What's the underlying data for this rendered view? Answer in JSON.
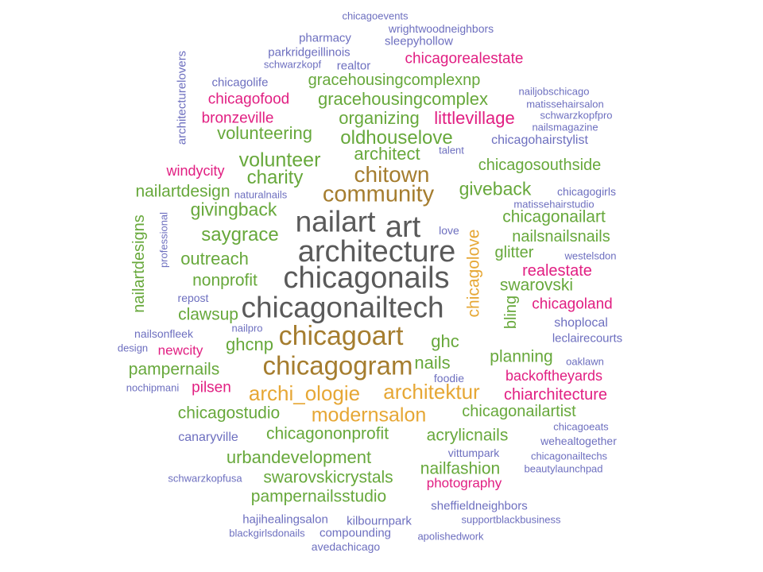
{
  "colors": {
    "gray": "#5a5a5a",
    "brown": "#a57d2f",
    "gold": "#e6a735",
    "green": "#67a83b",
    "magenta": "#e11f82",
    "purple": "#6d6fbf"
  },
  "words": [
    {
      "text": "chicagoevents",
      "color": "purple"
    },
    {
      "text": "wrightwoodneighbors",
      "color": "purple"
    },
    {
      "text": "pharmacy",
      "color": "purple"
    },
    {
      "text": "sleepyhollow",
      "color": "purple"
    },
    {
      "text": "parkridgeillinois",
      "color": "purple"
    },
    {
      "text": "schwarzkopf",
      "color": "purple"
    },
    {
      "text": "realtor",
      "color": "purple"
    },
    {
      "text": "chicagorealestate",
      "color": "magenta"
    },
    {
      "text": "architecturelovers",
      "color": "purple"
    },
    {
      "text": "chicagolife",
      "color": "purple"
    },
    {
      "text": "gracehousingcomplexnp",
      "color": "green"
    },
    {
      "text": "nailjobschicago",
      "color": "purple"
    },
    {
      "text": "chicagofood",
      "color": "magenta"
    },
    {
      "text": "gracehousingcomplex",
      "color": "green"
    },
    {
      "text": "matissehairsalon",
      "color": "purple"
    },
    {
      "text": "bronzeville",
      "color": "magenta"
    },
    {
      "text": "organizing",
      "color": "green"
    },
    {
      "text": "littlevillage",
      "color": "magenta"
    },
    {
      "text": "schwarzkopfpro",
      "color": "purple"
    },
    {
      "text": "nailsmagazine",
      "color": "purple"
    },
    {
      "text": "volunteering",
      "color": "green"
    },
    {
      "text": "oldhouselove",
      "color": "green"
    },
    {
      "text": "chicagohairstylist",
      "color": "purple"
    },
    {
      "text": "architect",
      "color": "green"
    },
    {
      "text": "talent",
      "color": "purple"
    },
    {
      "text": "volunteer",
      "color": "green"
    },
    {
      "text": "chicagosouthside",
      "color": "green"
    },
    {
      "text": "windycity",
      "color": "magenta"
    },
    {
      "text": "chitown",
      "color": "brown"
    },
    {
      "text": "charity",
      "color": "green"
    },
    {
      "text": "nailartdesign",
      "color": "green"
    },
    {
      "text": "naturalnails",
      "color": "purple"
    },
    {
      "text": "community",
      "color": "brown"
    },
    {
      "text": "giveback",
      "color": "green"
    },
    {
      "text": "chicagogirls",
      "color": "purple"
    },
    {
      "text": "matissehairstudio",
      "color": "purple"
    },
    {
      "text": "givingback",
      "color": "green"
    },
    {
      "text": "chicagonailart",
      "color": "green"
    },
    {
      "text": "nailart",
      "color": "gray"
    },
    {
      "text": "art",
      "color": "gray"
    },
    {
      "text": "love",
      "color": "purple"
    },
    {
      "text": "saygrace",
      "color": "green"
    },
    {
      "text": "nailsnailsnails",
      "color": "green"
    },
    {
      "text": "nailartdesigns",
      "color": "green"
    },
    {
      "text": "professional",
      "color": "purple"
    },
    {
      "text": "architecture",
      "color": "gray"
    },
    {
      "text": "glitter",
      "color": "green"
    },
    {
      "text": "westelsdon",
      "color": "purple"
    },
    {
      "text": "outreach",
      "color": "green"
    },
    {
      "text": "chicagolove",
      "color": "gold"
    },
    {
      "text": "realestate",
      "color": "magenta"
    },
    {
      "text": "nonprofit",
      "color": "green"
    },
    {
      "text": "chicagonails",
      "color": "gray"
    },
    {
      "text": "swarovski",
      "color": "green"
    },
    {
      "text": "repost",
      "color": "purple"
    },
    {
      "text": "chicagoland",
      "color": "magenta"
    },
    {
      "text": "clawsup",
      "color": "green"
    },
    {
      "text": "chicagonailtech",
      "color": "gray"
    },
    {
      "text": "bling",
      "color": "green"
    },
    {
      "text": "shoplocal",
      "color": "purple"
    },
    {
      "text": "nailsonfleek",
      "color": "purple"
    },
    {
      "text": "nailpro",
      "color": "purple"
    },
    {
      "text": "leclairecourts",
      "color": "purple"
    },
    {
      "text": "design",
      "color": "purple"
    },
    {
      "text": "newcity",
      "color": "magenta"
    },
    {
      "text": "ghcnp",
      "color": "green"
    },
    {
      "text": "chicagoart",
      "color": "brown"
    },
    {
      "text": "ghc",
      "color": "green"
    },
    {
      "text": "planning",
      "color": "green"
    },
    {
      "text": "oaklawn",
      "color": "purple"
    },
    {
      "text": "pampernails",
      "color": "green"
    },
    {
      "text": "chicagogram",
      "color": "brown"
    },
    {
      "text": "nails",
      "color": "green"
    },
    {
      "text": "backoftheyards",
      "color": "magenta"
    },
    {
      "text": "foodie",
      "color": "purple"
    },
    {
      "text": "nochipmani",
      "color": "purple"
    },
    {
      "text": "pilsen",
      "color": "magenta"
    },
    {
      "text": "archi_ologie",
      "color": "gold"
    },
    {
      "text": "architektur",
      "color": "gold"
    },
    {
      "text": "chiarchitecture",
      "color": "magenta"
    },
    {
      "text": "chicagostudio",
      "color": "green"
    },
    {
      "text": "modernsalon",
      "color": "gold"
    },
    {
      "text": "chicagonailartist",
      "color": "green"
    },
    {
      "text": "chicagoeats",
      "color": "purple"
    },
    {
      "text": "canaryville",
      "color": "purple"
    },
    {
      "text": "chicagononprofit",
      "color": "green"
    },
    {
      "text": "acrylicnails",
      "color": "green"
    },
    {
      "text": "wehealtogether",
      "color": "purple"
    },
    {
      "text": "vittumpark",
      "color": "purple"
    },
    {
      "text": "urbandevelopment",
      "color": "green"
    },
    {
      "text": "chicagonailtechs",
      "color": "purple"
    },
    {
      "text": "nailfashion",
      "color": "green"
    },
    {
      "text": "beautylaunchpad",
      "color": "purple"
    },
    {
      "text": "schwarzkopfusa",
      "color": "purple"
    },
    {
      "text": "swarovskicrystals",
      "color": "green"
    },
    {
      "text": "photography",
      "color": "magenta"
    },
    {
      "text": "pampernailsstudio",
      "color": "green"
    },
    {
      "text": "sheffieldneighbors",
      "color": "purple"
    },
    {
      "text": "hajihealingsalon",
      "color": "purple"
    },
    {
      "text": "kilbournpark",
      "color": "purple"
    },
    {
      "text": "supportblackbusiness",
      "color": "purple"
    },
    {
      "text": "blackgirlsdonails",
      "color": "purple"
    },
    {
      "text": "compounding",
      "color": "purple"
    },
    {
      "text": "apolishedwork",
      "color": "purple"
    },
    {
      "text": "avedachicago",
      "color": "purple"
    }
  ]
}
